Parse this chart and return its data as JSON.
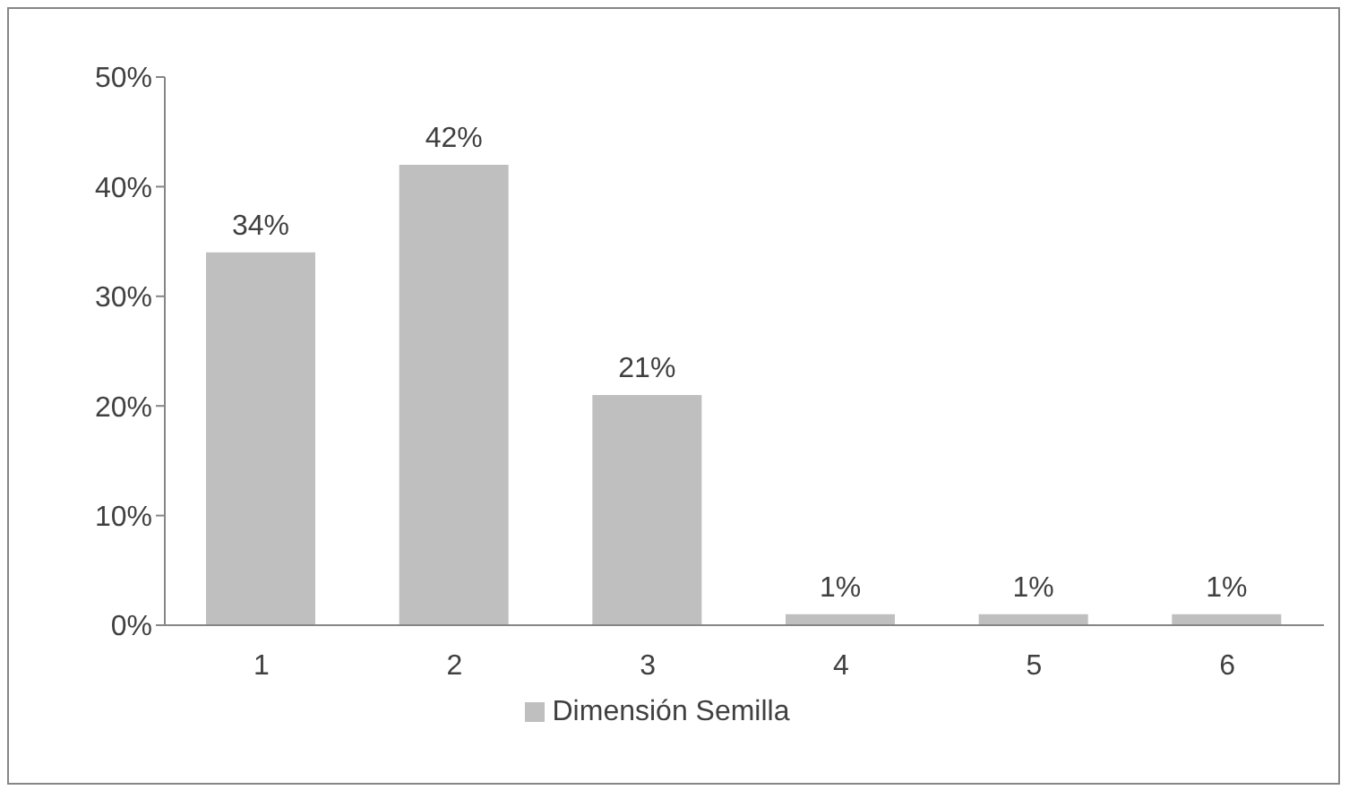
{
  "chart_data": {
    "type": "bar",
    "categories": [
      "1",
      "2",
      "3",
      "4",
      "5",
      "6"
    ],
    "series": [
      {
        "name": "Dimensión Semilla",
        "color": "#bfbfbf",
        "values": [
          34,
          42,
          21,
          1,
          1,
          1
        ],
        "value_labels": [
          "34%",
          "42%",
          "21%",
          "1%",
          "1%",
          "1%"
        ]
      }
    ],
    "ylim": [
      0,
      50
    ],
    "yticks": [
      {
        "value": 0,
        "label": "0%"
      },
      {
        "value": 10,
        "label": "10%"
      },
      {
        "value": 20,
        "label": "20%"
      },
      {
        "value": 30,
        "label": "30%"
      },
      {
        "value": 40,
        "label": "40%"
      },
      {
        "value": 50,
        "label": "50%"
      }
    ],
    "grid": false,
    "legend": "bottom"
  }
}
